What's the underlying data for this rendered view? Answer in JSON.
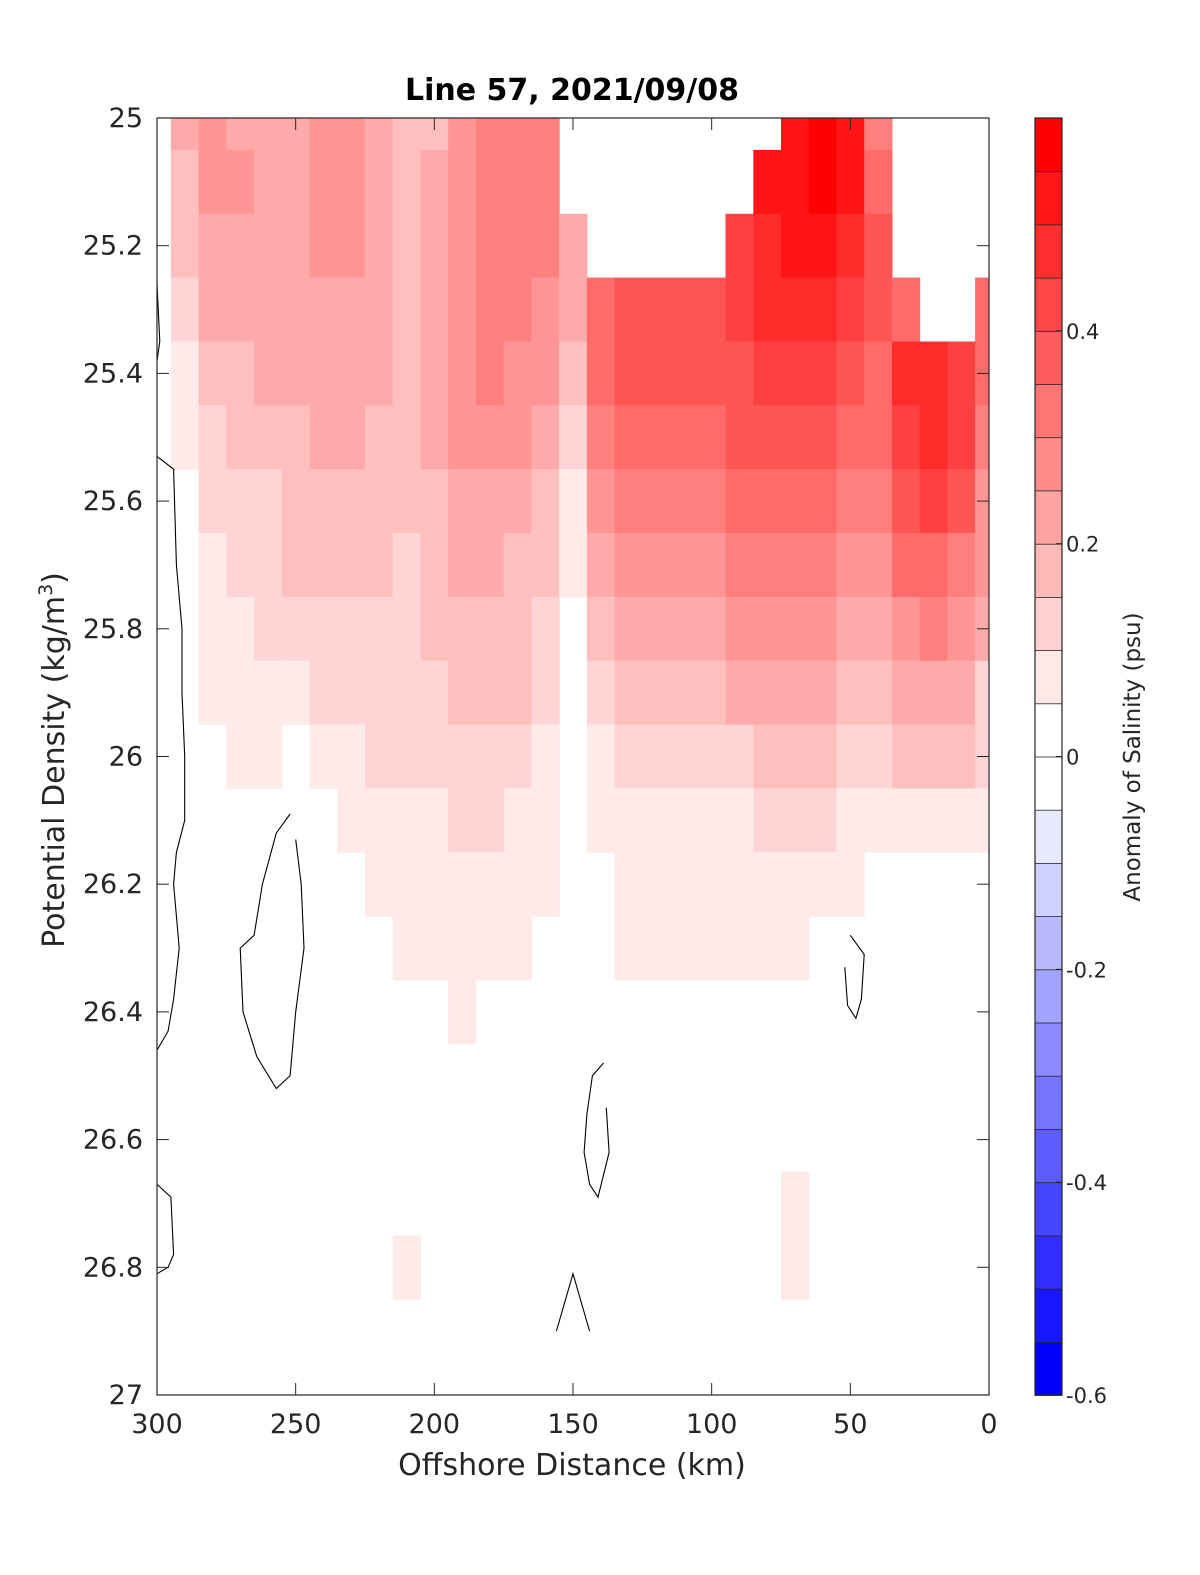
{
  "chart_data": {
    "type": "contour",
    "title": "Line 57, 2021/09/08",
    "xlabel": "Offshore Distance (km)",
    "ylabel_main": "Potential Density (kg/m",
    "ylabel_sup": "3",
    "ylabel_close": ")",
    "xlim": [
      300,
      0
    ],
    "x_reversed": true,
    "ylim": [
      25,
      27
    ],
    "y_reversed": true,
    "x_ticks": [
      "300",
      "250",
      "200",
      "150",
      "100",
      "50",
      "0"
    ],
    "y_ticks": [
      "25",
      "25.2",
      "25.4",
      "25.6",
      "25.8",
      "26",
      "26.2",
      "26.4",
      "26.6",
      "26.8",
      "27"
    ],
    "colorbar": {
      "label": "Anomaly of Salinity (psu)",
      "range": [
        -0.6,
        0.6
      ],
      "level_step": 0.05,
      "ticks": [
        "-0.6",
        "-0.4",
        "-0.2",
        "0",
        "0.2",
        "0.4"
      ],
      "colormap": "blue-white-red"
    },
    "x_stations_km": [
      300,
      290,
      280,
      270,
      260,
      250,
      240,
      230,
      220,
      210,
      200,
      190,
      180,
      170,
      160,
      150,
      140,
      130,
      120,
      110,
      100,
      90,
      80,
      70,
      60,
      50,
      40,
      30,
      20,
      10,
      0
    ],
    "density_levels": [
      25.0,
      25.1,
      25.2,
      25.3,
      25.4,
      25.5,
      25.6,
      25.7,
      25.8,
      25.9,
      26.0,
      26.1,
      26.2,
      26.3,
      26.4,
      26.5,
      26.6,
      26.7,
      26.8,
      26.9,
      27.0
    ],
    "density_coverage_top": [
      25.0,
      25.0,
      25.0,
      25.0,
      25.0,
      25.0,
      25.0,
      25.0,
      25.0,
      25.0,
      25.0,
      25.0,
      25.0,
      25.0,
      25.0,
      25.2,
      25.3,
      25.3,
      25.3,
      25.3,
      25.25,
      25.2,
      25.1,
      25.0,
      25.0,
      25.1,
      25.35,
      25.4,
      25.4,
      25.35,
      25.3
    ],
    "salinity_anomaly_psu": [
      [
        0.0,
        0.2,
        0.25,
        0.2,
        0.2,
        0.2,
        0.25,
        0.25,
        0.2,
        0.15,
        0.15,
        0.25,
        0.3,
        0.3,
        0.3,
        null,
        null,
        null,
        null,
        null,
        null,
        null,
        null,
        0.55,
        0.6,
        0.55,
        0.3,
        null,
        null,
        null,
        null
      ],
      [
        0.0,
        0.15,
        0.25,
        0.25,
        0.2,
        0.2,
        0.25,
        0.25,
        0.2,
        0.15,
        0.2,
        0.25,
        0.3,
        0.3,
        0.3,
        null,
        null,
        null,
        null,
        null,
        null,
        null,
        0.55,
        0.55,
        0.6,
        0.55,
        0.35,
        null,
        null,
        null,
        null
      ],
      [
        0.0,
        0.15,
        0.2,
        0.2,
        0.2,
        0.2,
        0.25,
        0.25,
        0.2,
        0.15,
        0.2,
        0.25,
        0.3,
        0.3,
        0.3,
        0.2,
        null,
        null,
        null,
        null,
        null,
        0.45,
        0.5,
        0.55,
        0.55,
        0.5,
        0.4,
        null,
        null,
        null,
        null
      ],
      [
        0.0,
        0.1,
        0.2,
        0.2,
        0.2,
        0.2,
        0.2,
        0.2,
        0.2,
        0.15,
        0.2,
        0.25,
        0.3,
        0.3,
        0.25,
        0.2,
        0.35,
        0.4,
        0.4,
        0.4,
        0.4,
        0.45,
        0.5,
        0.5,
        0.5,
        0.45,
        0.4,
        0.35,
        null,
        null,
        0.35
      ],
      [
        0.0,
        0.05,
        0.15,
        0.15,
        0.2,
        0.2,
        0.2,
        0.2,
        0.2,
        0.15,
        0.2,
        0.25,
        0.3,
        0.25,
        0.25,
        0.15,
        0.35,
        0.4,
        0.4,
        0.4,
        0.4,
        0.4,
        0.45,
        0.45,
        0.45,
        0.4,
        0.35,
        0.5,
        0.5,
        0.45,
        0.35
      ],
      [
        0.0,
        0.05,
        0.1,
        0.15,
        0.15,
        0.15,
        0.2,
        0.2,
        0.15,
        0.15,
        0.2,
        0.25,
        0.25,
        0.25,
        0.2,
        0.1,
        0.3,
        0.35,
        0.35,
        0.35,
        0.35,
        0.4,
        0.4,
        0.4,
        0.4,
        0.35,
        0.35,
        0.45,
        0.5,
        0.45,
        0.3
      ],
      [
        0.0,
        0.0,
        0.1,
        0.1,
        0.1,
        0.15,
        0.15,
        0.15,
        0.15,
        0.15,
        0.15,
        0.2,
        0.2,
        0.2,
        0.15,
        0.05,
        0.25,
        0.3,
        0.3,
        0.3,
        0.3,
        0.35,
        0.35,
        0.35,
        0.35,
        0.3,
        0.3,
        0.4,
        0.45,
        0.4,
        0.25
      ],
      [
        0.0,
        0.0,
        0.05,
        0.1,
        0.1,
        0.15,
        0.15,
        0.15,
        0.15,
        0.1,
        0.15,
        0.2,
        0.2,
        0.15,
        0.15,
        0.05,
        0.2,
        0.25,
        0.25,
        0.25,
        0.25,
        0.3,
        0.3,
        0.3,
        0.3,
        0.25,
        0.25,
        0.35,
        0.35,
        0.3,
        0.25
      ],
      [
        0.0,
        0.0,
        0.05,
        0.05,
        0.1,
        0.1,
        0.1,
        0.1,
        0.1,
        0.1,
        0.15,
        0.15,
        0.15,
        0.15,
        0.1,
        0.0,
        0.15,
        0.2,
        0.2,
        0.2,
        0.2,
        0.25,
        0.25,
        0.25,
        0.25,
        0.2,
        0.2,
        0.25,
        0.3,
        0.25,
        0.2
      ],
      [
        0.0,
        0.0,
        0.05,
        0.05,
        0.05,
        0.05,
        0.1,
        0.1,
        0.1,
        0.1,
        0.1,
        0.15,
        0.15,
        0.15,
        0.1,
        0.0,
        0.1,
        0.15,
        0.15,
        0.15,
        0.15,
        0.2,
        0.2,
        0.2,
        0.2,
        0.15,
        0.15,
        0.2,
        0.2,
        0.2,
        0.1
      ],
      [
        0.0,
        0.0,
        0.0,
        0.05,
        0.05,
        0.0,
        0.05,
        0.05,
        0.1,
        0.1,
        0.1,
        0.1,
        0.1,
        0.1,
        0.05,
        0.0,
        0.05,
        0.1,
        0.1,
        0.1,
        0.1,
        0.1,
        0.15,
        0.15,
        0.15,
        0.1,
        0.1,
        0.15,
        0.15,
        0.15,
        0.1
      ],
      [
        0.0,
        0.0,
        0.0,
        0.0,
        0.0,
        0.0,
        0.0,
        0.05,
        0.05,
        0.05,
        0.05,
        0.1,
        0.1,
        0.05,
        0.05,
        0.0,
        0.05,
        0.05,
        0.05,
        0.05,
        0.05,
        0.05,
        0.1,
        0.1,
        0.1,
        0.05,
        0.05,
        0.05,
        0.05,
        0.05,
        0.05
      ],
      [
        0.0,
        0.0,
        0.0,
        0.0,
        0.0,
        0.0,
        0.0,
        0.0,
        0.05,
        0.05,
        0.05,
        0.05,
        0.05,
        0.05,
        0.05,
        0.0,
        0.0,
        0.05,
        0.05,
        0.05,
        0.05,
        0.05,
        0.05,
        0.05,
        0.05,
        0.05,
        0.0,
        0.0,
        0.0,
        0.0,
        0.0
      ],
      [
        0.0,
        0.0,
        0.0,
        0.0,
        0.0,
        0.0,
        0.0,
        0.0,
        0.0,
        0.05,
        0.05,
        0.05,
        0.05,
        0.05,
        0.0,
        0.0,
        0.0,
        0.05,
        0.05,
        0.05,
        0.05,
        0.05,
        0.05,
        0.05,
        0.0,
        0.0,
        0.0,
        0.0,
        0.0,
        0.0,
        0.0
      ],
      [
        0.0,
        0.0,
        0.0,
        0.0,
        0.0,
        0.0,
        0.0,
        0.0,
        0.0,
        0.0,
        0.0,
        0.05,
        0.0,
        0.0,
        0.0,
        0.0,
        0.0,
        0.0,
        0.0,
        0.0,
        0.0,
        0.0,
        0.0,
        0.0,
        0.0,
        0.0,
        0.0,
        0.0,
        0.0,
        0.0,
        0.0
      ],
      [
        0.0,
        0.0,
        0.0,
        0.0,
        0.0,
        0.0,
        0.0,
        0.0,
        0.0,
        0.0,
        0.0,
        0.0,
        0.0,
        0.0,
        0.0,
        0.0,
        0.0,
        0.0,
        0.0,
        0.0,
        0.0,
        0.0,
        0.0,
        0.0,
        0.0,
        0.0,
        0.0,
        0.0,
        0.0,
        0.0,
        0.0
      ],
      [
        0.0,
        0.0,
        0.0,
        0.0,
        0.0,
        0.0,
        0.0,
        0.0,
        0.0,
        0.0,
        0.0,
        0.0,
        0.0,
        0.0,
        0.0,
        0.0,
        0.0,
        0.0,
        0.0,
        0.0,
        0.0,
        0.0,
        0.0,
        0.0,
        0.0,
        0.0,
        0.0,
        0.0,
        0.0,
        0.0,
        0.0
      ],
      [
        0.0,
        0.0,
        0.0,
        0.0,
        0.0,
        0.0,
        0.0,
        0.0,
        0.0,
        0.0,
        0.0,
        0.0,
        0.0,
        0.0,
        0.0,
        0.0,
        0.0,
        0.0,
        0.0,
        0.0,
        0.0,
        0.0,
        0.0,
        0.05,
        0.0,
        0.0,
        0.0,
        0.0,
        0.0,
        0.0,
        0.0
      ],
      [
        0.0,
        0.0,
        0.0,
        0.0,
        0.0,
        0.0,
        0.0,
        0.0,
        0.0,
        0.05,
        0.0,
        0.0,
        0.0,
        0.0,
        0.0,
        0.0,
        0.0,
        0.0,
        0.0,
        0.0,
        0.0,
        0.0,
        0.0,
        0.05,
        0.0,
        0.0,
        0.0,
        0.0,
        0.0,
        0.0,
        0.0
      ],
      [
        0.0,
        0.0,
        0.0,
        0.0,
        0.0,
        0.0,
        0.0,
        0.0,
        0.0,
        0.0,
        0.0,
        0.0,
        0.0,
        0.0,
        0.0,
        0.0,
        0.0,
        0.0,
        0.0,
        0.0,
        0.0,
        0.0,
        0.0,
        0.0,
        0.0,
        0.0,
        0.0,
        0.0,
        0.0,
        0.0,
        0.0
      ],
      [
        0.0,
        0.0,
        0.0,
        0.0,
        0.0,
        0.0,
        0.0,
        0.0,
        0.0,
        0.0,
        0.0,
        0.0,
        0.0,
        0.0,
        0.0,
        0.0,
        0.0,
        0.0,
        0.0,
        0.0,
        0.0,
        0.0,
        0.0,
        0.0,
        0.0,
        0.0,
        0.0,
        0.0,
        0.0,
        0.0,
        0.0
      ]
    ],
    "zero_contour_loops": [
      {
        "points": [
          [
            300,
            25.26
          ],
          [
            299,
            25.35
          ],
          [
            300,
            25.38
          ]
        ]
      },
      {
        "points": [
          [
            300,
            25.53
          ],
          [
            294,
            25.55
          ],
          [
            293,
            25.7
          ],
          [
            291,
            25.8
          ],
          [
            291,
            25.9
          ],
          [
            290,
            26.0
          ],
          [
            290,
            26.1
          ],
          [
            293,
            26.15
          ],
          [
            294,
            26.2
          ],
          [
            292,
            26.3
          ],
          [
            294,
            26.38
          ],
          [
            296,
            26.43
          ],
          [
            300,
            26.46
          ]
        ]
      },
      {
        "points": [
          [
            252,
            26.09
          ],
          [
            257,
            26.12
          ],
          [
            262,
            26.2
          ],
          [
            265,
            26.28
          ],
          [
            270,
            26.3
          ],
          [
            269,
            26.4
          ],
          [
            264,
            26.47
          ],
          [
            257,
            26.52
          ],
          [
            252,
            26.5
          ],
          [
            250,
            26.4
          ],
          [
            247,
            26.3
          ],
          [
            248,
            26.2
          ],
          [
            250,
            26.13
          ]
        ]
      },
      {
        "points": [
          [
            139,
            26.48
          ],
          [
            143,
            26.5
          ],
          [
            145,
            26.56
          ],
          [
            146,
            26.62
          ],
          [
            144,
            26.67
          ],
          [
            141,
            26.69
          ],
          [
            137,
            26.62
          ],
          [
            138,
            26.55
          ]
        ]
      },
      {
        "points": [
          [
            50,
            26.28
          ],
          [
            45,
            26.31
          ],
          [
            46,
            26.38
          ],
          [
            48,
            26.41
          ],
          [
            51,
            26.39
          ],
          [
            52,
            26.33
          ]
        ]
      },
      {
        "points": [
          [
            300,
            26.67
          ],
          [
            295,
            26.69
          ],
          [
            294,
            26.78
          ],
          [
            296,
            26.8
          ],
          [
            300,
            26.81
          ]
        ]
      },
      {
        "points": [
          [
            156,
            26.9
          ],
          [
            150,
            26.81
          ],
          [
            144,
            26.9
          ]
        ]
      }
    ]
  }
}
